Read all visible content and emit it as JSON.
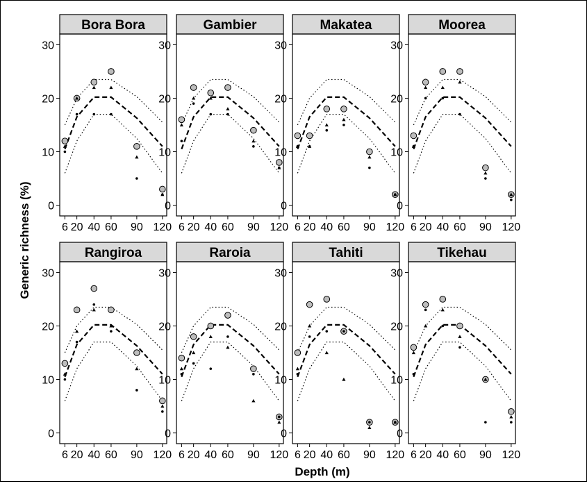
{
  "xlabel": "Depth (m)",
  "ylabel": "Generic richness (%)",
  "colors": {
    "strip_bg": "#d9d9d9",
    "circle_fill": "#bdbdbd",
    "marks": "#000000",
    "background": "#ffffff"
  },
  "chart_data": {
    "type": "scatter",
    "layout": "facet grid, 2 rows x 4 columns",
    "x_ticks": [
      6,
      20,
      40,
      60,
      90,
      120
    ],
    "x_tick_labels": [
      "6",
      "20",
      "40",
      "60",
      "90",
      "120"
    ],
    "xlim": [
      0,
      125
    ],
    "y_ticks": [
      0,
      10,
      20,
      30
    ],
    "ylim": [
      -2,
      32
    ],
    "grid": false,
    "marker_legend": [
      "large grey circle",
      "small triangle",
      "small dot"
    ],
    "reference_curves": {
      "mean": {
        "style": "dashed",
        "x": [
          6,
          20,
          40,
          60,
          90,
          120
        ],
        "y": [
          10.5,
          16.5,
          20.2,
          20.2,
          16.3,
          11
        ]
      },
      "upper": {
        "style": "dotted",
        "x": [
          6,
          20,
          40,
          60,
          90,
          120
        ],
        "y": [
          15,
          20,
          23.5,
          23.5,
          20.3,
          15.5
        ]
      },
      "lower": {
        "style": "dotted",
        "x": [
          6,
          20,
          40,
          60,
          90,
          120
        ],
        "y": [
          6,
          12,
          17,
          17,
          12.5,
          6
        ]
      }
    },
    "panels": [
      {
        "title": "Bora Bora",
        "x": [
          6,
          20,
          40,
          60,
          90,
          120
        ],
        "circle": [
          12,
          20,
          23,
          25,
          11,
          3
        ],
        "triangle": [
          11,
          20,
          22,
          22,
          9,
          2
        ],
        "dot": [
          10,
          17,
          17,
          17,
          5,
          2
        ]
      },
      {
        "title": "Gambier",
        "x": [
          6,
          20,
          40,
          60,
          90,
          120
        ],
        "circle": [
          16,
          22,
          21,
          22,
          14,
          8
        ],
        "triangle": [
          15,
          20,
          20,
          18,
          12,
          7
        ],
        "dot": [
          12,
          19,
          17,
          17,
          11,
          7
        ]
      },
      {
        "title": "Makatea",
        "x": [
          6,
          20,
          40,
          60,
          90,
          120
        ],
        "circle": [
          13,
          13,
          18,
          18,
          10,
          2
        ],
        "triangle": [
          11,
          11,
          15,
          16,
          9,
          2
        ],
        "dot": [
          11,
          11,
          14,
          15,
          7,
          2
        ]
      },
      {
        "title": "Moorea",
        "x": [
          6,
          20,
          40,
          60,
          90,
          120
        ],
        "circle": [
          13,
          23,
          25,
          25,
          7,
          2
        ],
        "triangle": [
          11,
          22,
          22,
          23,
          6,
          2
        ],
        "dot": [
          11,
          20,
          20,
          17,
          5,
          1
        ]
      },
      {
        "title": "Rangiroa",
        "x": [
          6,
          20,
          40,
          60,
          90,
          120
        ],
        "circle": [
          13,
          23,
          27,
          23,
          15,
          6
        ],
        "triangle": [
          11,
          19,
          23,
          20,
          12,
          5
        ],
        "dot": [
          10,
          17,
          24,
          19,
          8,
          4
        ]
      },
      {
        "title": "Raroia",
        "x": [
          6,
          20,
          40,
          60,
          90,
          120
        ],
        "circle": [
          14,
          18,
          20,
          22,
          12,
          3
        ],
        "triangle": [
          12,
          15,
          18,
          16,
          6,
          2
        ],
        "dot": [
          11,
          13,
          12,
          18,
          11,
          3
        ]
      },
      {
        "title": "Tahiti",
        "x": [
          6,
          20,
          40,
          60,
          90,
          120
        ],
        "circle": [
          15,
          24,
          25,
          19,
          2,
          2
        ],
        "triangle": [
          12,
          20,
          15,
          10,
          1,
          2
        ],
        "dot": [
          11,
          18,
          19,
          19,
          2,
          2
        ]
      },
      {
        "title": "Tikehau",
        "x": [
          6,
          20,
          40,
          60,
          90,
          120
        ],
        "circle": [
          16,
          24,
          25,
          20,
          10,
          4
        ],
        "triangle": [
          15,
          20,
          23,
          18,
          10,
          3
        ],
        "dot": [
          11,
          23,
          20,
          16,
          2,
          2
        ]
      }
    ]
  }
}
